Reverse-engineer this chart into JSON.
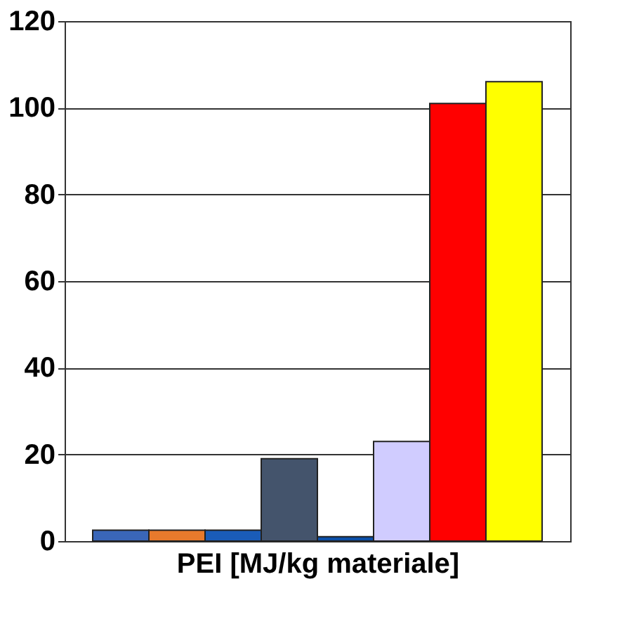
{
  "chart_data": {
    "type": "bar",
    "xlabel": "PEI [MJ/kg materiale]",
    "categories": [
      null,
      null,
      null,
      null,
      null,
      null,
      null,
      null,
      null
    ],
    "values": [
      2.5,
      2.5,
      2.5,
      null,
      19,
      1,
      23,
      101,
      106
    ],
    "colors": [
      "#3a66b8",
      "#e87a2c",
      "#1a5cb8",
      "#808080",
      "#44546c",
      "#0b4fa8",
      "#d0ccff",
      "#ff0000",
      "#ffff00"
    ],
    "ylim": [
      0,
      120
    ],
    "yticks": [
      0,
      20,
      40,
      60,
      80,
      100,
      120
    ],
    "grid": "y"
  }
}
